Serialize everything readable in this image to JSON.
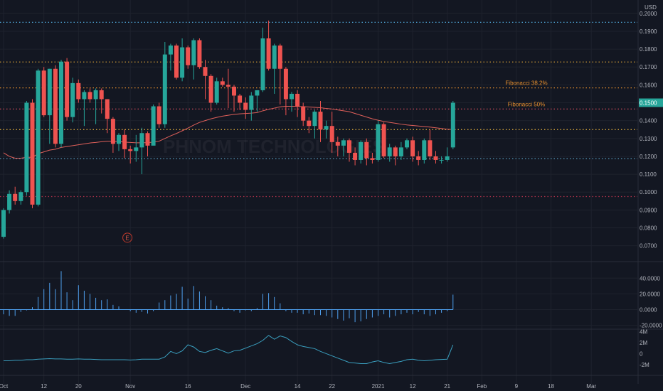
{
  "chart_data": [
    {
      "type": "candlestick",
      "panel": "price",
      "ylim": [
        0.0635,
        0.2035
      ],
      "axis_unit": "USD",
      "y_ticks": [
        "0.2000",
        "0.1900",
        "0.1800",
        "0.1700",
        "0.1600",
        "0.1500",
        "0.1400",
        "0.1300",
        "0.1200",
        "0.1100",
        "0.1000",
        "0.0900",
        "0.0800",
        "0.0700"
      ],
      "x_ticks": [
        {
          "label": "Oct",
          "i": 0
        },
        {
          "label": "12",
          "i": 7
        },
        {
          "label": "20",
          "i": 13
        },
        {
          "label": "Nov",
          "i": 22
        },
        {
          "label": "16",
          "i": 32
        },
        {
          "label": "Dec",
          "i": 42
        },
        {
          "label": "14",
          "i": 51
        },
        {
          "label": "22",
          "i": 57
        },
        {
          "label": "2021",
          "i": 65
        },
        {
          "label": "12",
          "i": 71
        },
        {
          "label": "21",
          "i": 77
        },
        {
          "label": "Feb",
          "i": 83
        },
        {
          "label": "9",
          "i": 89
        },
        {
          "label": "18",
          "i": 95
        },
        {
          "label": "Mar",
          "i": 102
        }
      ],
      "watermark": "PHNOM TECHNOLOGIES",
      "event_marker": {
        "label": "E",
        "i": 21,
        "y": 0.0745
      },
      "colors": {
        "up": "#26a69a",
        "down": "#ef5350",
        "ma": "#e0605a",
        "grid": "#1e222d",
        "text": "#b2b5be",
        "background": "#131722"
      },
      "candles": [
        [
          0.075,
          0.09,
          0.074,
          0.091
        ],
        [
          0.09,
          0.099,
          0.088,
          0.101
        ],
        [
          0.099,
          0.095,
          0.093,
          0.103
        ],
        [
          0.095,
          0.1,
          0.093,
          0.101
        ],
        [
          0.1,
          0.15,
          0.098,
          0.151
        ],
        [
          0.15,
          0.093,
          0.091,
          0.152
        ],
        [
          0.093,
          0.168,
          0.092,
          0.169
        ],
        [
          0.168,
          0.143,
          0.142,
          0.17
        ],
        [
          0.143,
          0.169,
          0.127,
          0.169
        ],
        [
          0.169,
          0.127,
          0.125,
          0.171
        ],
        [
          0.127,
          0.173,
          0.125,
          0.174
        ],
        [
          0.173,
          0.142,
          0.14,
          0.175
        ],
        [
          0.142,
          0.161,
          0.139,
          0.164
        ],
        [
          0.161,
          0.152,
          0.15,
          0.163
        ],
        [
          0.152,
          0.156,
          0.137,
          0.157
        ],
        [
          0.156,
          0.152,
          0.15,
          0.158
        ],
        [
          0.152,
          0.157,
          0.138,
          0.158
        ],
        [
          0.157,
          0.152,
          0.144,
          0.158
        ],
        [
          0.152,
          0.141,
          0.133,
          0.152
        ],
        [
          0.141,
          0.127,
          0.122,
          0.142
        ],
        [
          0.127,
          0.132,
          0.123,
          0.133
        ],
        [
          0.132,
          0.124,
          0.119,
          0.135
        ],
        [
          0.124,
          0.123,
          0.116,
          0.126
        ],
        [
          0.123,
          0.125,
          0.117,
          0.132
        ],
        [
          0.125,
          0.133,
          0.11,
          0.136
        ],
        [
          0.133,
          0.126,
          0.12,
          0.134
        ],
        [
          0.126,
          0.148,
          0.127,
          0.149
        ],
        [
          0.148,
          0.138,
          0.136,
          0.15
        ],
        [
          0.138,
          0.177,
          0.136,
          0.184
        ],
        [
          0.177,
          0.182,
          0.168,
          0.183
        ],
        [
          0.182,
          0.164,
          0.163,
          0.183
        ],
        [
          0.164,
          0.181,
          0.162,
          0.186
        ],
        [
          0.181,
          0.171,
          0.169,
          0.182
        ],
        [
          0.171,
          0.185,
          0.163,
          0.186
        ],
        [
          0.185,
          0.17,
          0.169,
          0.186
        ],
        [
          0.17,
          0.165,
          0.152,
          0.174
        ],
        [
          0.165,
          0.15,
          0.145,
          0.166
        ],
        [
          0.15,
          0.162,
          0.149,
          0.164
        ],
        [
          0.162,
          0.16,
          0.159,
          0.164
        ],
        [
          0.16,
          0.159,
          0.147,
          0.169
        ],
        [
          0.159,
          0.154,
          0.145,
          0.16
        ],
        [
          0.154,
          0.15,
          0.146,
          0.155
        ],
        [
          0.15,
          0.146,
          0.141,
          0.153
        ],
        [
          0.146,
          0.154,
          0.14,
          0.156
        ],
        [
          0.154,
          0.157,
          0.145,
          0.157
        ],
        [
          0.157,
          0.186,
          0.156,
          0.192
        ],
        [
          0.186,
          0.169,
          0.168,
          0.196
        ],
        [
          0.169,
          0.182,
          0.155,
          0.183
        ],
        [
          0.182,
          0.169,
          0.149,
          0.183
        ],
        [
          0.169,
          0.152,
          0.143,
          0.17
        ],
        [
          0.152,
          0.155,
          0.145,
          0.156
        ],
        [
          0.155,
          0.148,
          0.142,
          0.157
        ],
        [
          0.148,
          0.14,
          0.137,
          0.15
        ],
        [
          0.14,
          0.137,
          0.133,
          0.142
        ],
        [
          0.137,
          0.145,
          0.13,
          0.146
        ],
        [
          0.145,
          0.135,
          0.128,
          0.151
        ],
        [
          0.135,
          0.137,
          0.13,
          0.14
        ],
        [
          0.137,
          0.128,
          0.122,
          0.145
        ],
        [
          0.128,
          0.126,
          0.12,
          0.131
        ],
        [
          0.126,
          0.129,
          0.12,
          0.13
        ],
        [
          0.129,
          0.122,
          0.117,
          0.13
        ],
        [
          0.122,
          0.118,
          0.115,
          0.125
        ],
        [
          0.118,
          0.128,
          0.116,
          0.129
        ],
        [
          0.128,
          0.119,
          0.115,
          0.13
        ],
        [
          0.119,
          0.118,
          0.116,
          0.122
        ],
        [
          0.118,
          0.138,
          0.117,
          0.14
        ],
        [
          0.138,
          0.12,
          0.119,
          0.139
        ],
        [
          0.12,
          0.125,
          0.117,
          0.127
        ],
        [
          0.125,
          0.12,
          0.115,
          0.126
        ],
        [
          0.12,
          0.125,
          0.118,
          0.128
        ],
        [
          0.125,
          0.129,
          0.124,
          0.13
        ],
        [
          0.129,
          0.12,
          0.117,
          0.131
        ],
        [
          0.12,
          0.118,
          0.115,
          0.123
        ],
        [
          0.118,
          0.129,
          0.116,
          0.13
        ],
        [
          0.129,
          0.12,
          0.118,
          0.135
        ],
        [
          0.12,
          0.118,
          0.116,
          0.123
        ],
        [
          0.118,
          0.118,
          0.116,
          0.12
        ],
        [
          0.118,
          0.12,
          0.117,
          0.125
        ],
        [
          0.125,
          0.15,
          0.124,
          0.151
        ]
      ],
      "ma_series": [
        0.122,
        0.12,
        0.119,
        0.119,
        0.1195,
        0.1195,
        0.1215,
        0.1225,
        0.1235,
        0.124,
        0.125,
        0.1255,
        0.126,
        0.1265,
        0.127,
        0.1275,
        0.1278,
        0.1282,
        0.1285,
        0.1285,
        0.1283,
        0.128,
        0.1278,
        0.1276,
        0.1276,
        0.1277,
        0.128,
        0.1285,
        0.13,
        0.1315,
        0.1328,
        0.1343,
        0.1358,
        0.1375,
        0.139,
        0.14,
        0.141,
        0.1418,
        0.1425,
        0.143,
        0.1435,
        0.1438,
        0.144,
        0.1442,
        0.1445,
        0.1455,
        0.1463,
        0.147,
        0.1477,
        0.148,
        0.148,
        0.1479,
        0.1478,
        0.1476,
        0.1474,
        0.1472,
        0.1468,
        0.1465,
        0.146,
        0.1455,
        0.145,
        0.144,
        0.143,
        0.142,
        0.141,
        0.1402,
        0.1395,
        0.139,
        0.1385,
        0.138,
        0.1376,
        0.1373,
        0.137,
        0.1367,
        0.1364,
        0.136,
        0.1356,
        0.1352,
        0.135
      ],
      "horizontal_levels": [
        {
          "y": 0.195,
          "color": "#4fa7d8",
          "style": "dotted"
        },
        {
          "y": 0.1728,
          "color": "#d9a337",
          "style": "dotted"
        },
        {
          "y": 0.1583,
          "color": "#e8902e",
          "style": "dotted",
          "label": "Fibonacci 38.2%",
          "label_color": "#e8902e"
        },
        {
          "y": 0.1465,
          "color": "#e05060",
          "style": "dotted",
          "label": "Fibonacci 50%",
          "label_color": "#e8902e"
        },
        {
          "y": 0.135,
          "color": "#e8b33d",
          "style": "dotted"
        },
        {
          "y": 0.1187,
          "color": "#5ea7c9",
          "style": "dotted"
        },
        {
          "y": 0.0975,
          "color": "#b0324b",
          "style": "dotted"
        }
      ],
      "last_price": {
        "value": 0.15,
        "label": "0.1500",
        "color": "#26a69a"
      }
    },
    {
      "type": "histogram",
      "panel": "oscillator",
      "ylim": [
        -24,
        52
      ],
      "y_ticks": [
        "40.0000",
        "20.0000",
        "0.0000",
        "-20.0000"
      ],
      "color": "#4fa0ef",
      "values": [
        -6,
        -8,
        -8,
        -3,
        -1,
        3,
        16,
        26,
        34,
        26,
        49,
        22,
        12,
        31,
        24,
        20,
        15,
        12,
        13,
        6,
        4,
        0,
        -2,
        -4,
        -3,
        -5,
        -2,
        9,
        12,
        18,
        20,
        29,
        14,
        30,
        23,
        17,
        12,
        5,
        3,
        2,
        -2,
        -4,
        -1,
        -2,
        2,
        20,
        21,
        16,
        8,
        -2,
        -4,
        -4,
        -6,
        -5,
        -7,
        -7,
        -8,
        -10,
        -12,
        -14,
        -11,
        -16,
        -15,
        -12,
        -10,
        -8,
        -6,
        -10,
        -8,
        -6,
        -4,
        -6,
        -3,
        -6,
        -8,
        -6,
        -4,
        -2,
        19
      ]
    },
    {
      "type": "line",
      "panel": "volume-line",
      "ylim": [
        -2.9,
        4.3
      ],
      "y_ticks": [
        "4M",
        "2M",
        "0",
        "-2M"
      ],
      "color": "#3a9fbf",
      "values": [
        -1.3,
        -1.3,
        -1.2,
        -1.2,
        -1.1,
        -1.1,
        -1.0,
        -0.95,
        -0.9,
        -0.95,
        -0.95,
        -1.0,
        -1.0,
        -0.95,
        -1.0,
        -1.0,
        -1.05,
        -1.1,
        -1.1,
        -1.1,
        -1.1,
        -1.1,
        -1.15,
        -1.1,
        -1.0,
        -1.0,
        -1.0,
        -1.0,
        -0.6,
        0.4,
        0.0,
        0.5,
        1.6,
        1.2,
        0.4,
        0.2,
        0.6,
        0.9,
        0.5,
        0.1,
        0.5,
        0.6,
        1.0,
        1.4,
        1.8,
        2.4,
        3.3,
        2.6,
        3.2,
        2.9,
        2.2,
        1.6,
        1.3,
        1.1,
        0.9,
        0.4,
        0.0,
        -0.4,
        -0.8,
        -1.2,
        -1.6,
        -1.7,
        -1.8,
        -1.8,
        -1.5,
        -1.3,
        -1.6,
        -1.8,
        -1.6,
        -1.4,
        -1.1,
        -1.0,
        -1.2,
        -1.3,
        -1.2,
        -1.1,
        -1.05,
        -1.0,
        1.6
      ]
    }
  ]
}
